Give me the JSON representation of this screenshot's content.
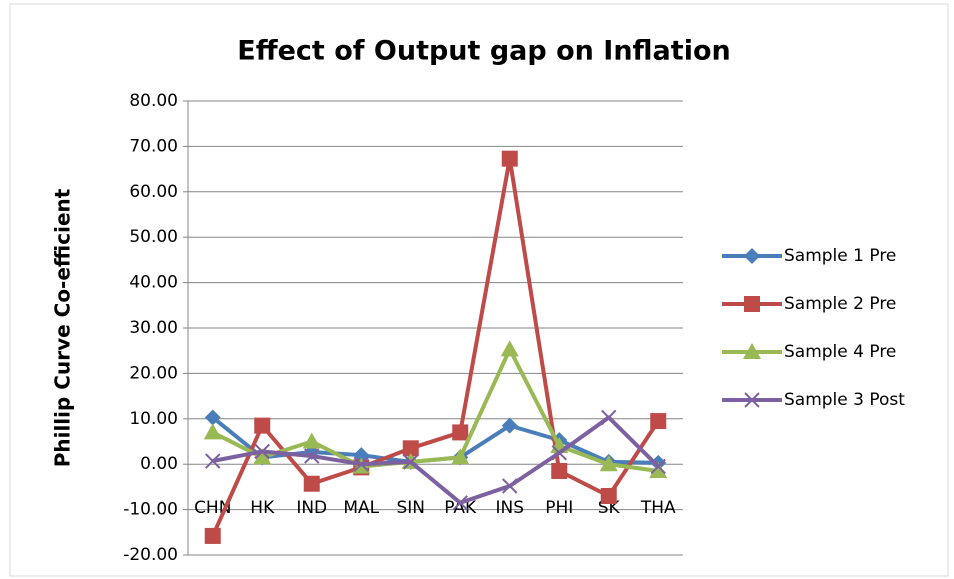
{
  "chart_data": {
    "type": "line",
    "title": "Effect of Output gap on Inflation",
    "y_label": "Phillip Curve Co-efficient",
    "categories": [
      "CHN",
      "HK",
      "IND",
      "MAL",
      "SIN",
      "PAK",
      "INS",
      "PHI",
      "SK",
      "THA"
    ],
    "series": [
      {
        "name": "Sample 1 Pre",
        "color": "#4a7ebb",
        "marker": "diamond",
        "values": [
          10.3,
          1.5,
          2.7,
          2.0,
          0.5,
          1.5,
          8.5,
          5.3,
          0.5,
          0.3
        ]
      },
      {
        "name": "Sample 2 Pre",
        "color": "#be4b48",
        "marker": "square",
        "values": [
          -15.8,
          8.5,
          -4.3,
          -0.7,
          3.5,
          7.0,
          67.3,
          -1.5,
          -7.0,
          9.5
        ]
      },
      {
        "name": "Sample 4 Pre",
        "color": "#98b954",
        "marker": "triangle",
        "values": [
          7.0,
          1.5,
          5.0,
          -0.5,
          0.5,
          1.5,
          25.3,
          4.0,
          0.0,
          -1.5
        ]
      },
      {
        "name": "Sample 3 Post",
        "color": "#7d60a0",
        "marker": "x",
        "values": [
          0.7,
          2.8,
          1.8,
          0.0,
          0.5,
          -8.5,
          -4.8,
          2.5,
          10.3,
          -0.5
        ]
      }
    ],
    "ylim": [
      -20,
      80
    ],
    "yticks": [
      {
        "value": -20,
        "label": "-20.00"
      },
      {
        "value": -10,
        "label": "-10.00"
      },
      {
        "value": 0,
        "label": "0.00"
      },
      {
        "value": 10,
        "label": "10.00"
      },
      {
        "value": 20,
        "label": "20.00"
      },
      {
        "value": 30,
        "label": "30.00"
      },
      {
        "value": 40,
        "label": "40.00"
      },
      {
        "value": 50,
        "label": "50.00"
      },
      {
        "value": 60,
        "label": "60.00"
      },
      {
        "value": 70,
        "label": "70.00"
      },
      {
        "value": 80,
        "label": "80.00"
      }
    ],
    "grid": true,
    "legend": "right"
  }
}
